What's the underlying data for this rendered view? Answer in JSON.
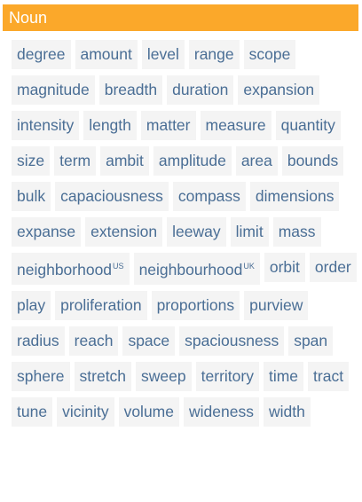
{
  "header": {
    "title": "Noun"
  },
  "words": [
    {
      "text": "degree",
      "sup": ""
    },
    {
      "text": "amount",
      "sup": ""
    },
    {
      "text": "level",
      "sup": ""
    },
    {
      "text": "range",
      "sup": ""
    },
    {
      "text": "scope",
      "sup": ""
    },
    {
      "text": "magnitude",
      "sup": ""
    },
    {
      "text": "breadth",
      "sup": ""
    },
    {
      "text": "duration",
      "sup": ""
    },
    {
      "text": "expansion",
      "sup": ""
    },
    {
      "text": "intensity",
      "sup": ""
    },
    {
      "text": "length",
      "sup": ""
    },
    {
      "text": "matter",
      "sup": ""
    },
    {
      "text": "measure",
      "sup": ""
    },
    {
      "text": "quantity",
      "sup": ""
    },
    {
      "text": "size",
      "sup": ""
    },
    {
      "text": "term",
      "sup": ""
    },
    {
      "text": "ambit",
      "sup": ""
    },
    {
      "text": "amplitude",
      "sup": ""
    },
    {
      "text": "area",
      "sup": ""
    },
    {
      "text": "bounds",
      "sup": ""
    },
    {
      "text": "bulk",
      "sup": ""
    },
    {
      "text": "capaciousness",
      "sup": ""
    },
    {
      "text": "compass",
      "sup": ""
    },
    {
      "text": "dimensions",
      "sup": ""
    },
    {
      "text": "expanse",
      "sup": ""
    },
    {
      "text": "extension",
      "sup": ""
    },
    {
      "text": "leeway",
      "sup": ""
    },
    {
      "text": "limit",
      "sup": ""
    },
    {
      "text": "mass",
      "sup": ""
    },
    {
      "text": "neighborhood",
      "sup": "US"
    },
    {
      "text": "neighbourhood",
      "sup": "UK"
    },
    {
      "text": "orbit",
      "sup": ""
    },
    {
      "text": "order",
      "sup": ""
    },
    {
      "text": "play",
      "sup": ""
    },
    {
      "text": "proliferation",
      "sup": ""
    },
    {
      "text": "proportions",
      "sup": ""
    },
    {
      "text": "purview",
      "sup": ""
    },
    {
      "text": "radius",
      "sup": ""
    },
    {
      "text": "reach",
      "sup": ""
    },
    {
      "text": "space",
      "sup": ""
    },
    {
      "text": "spaciousness",
      "sup": ""
    },
    {
      "text": "span",
      "sup": ""
    },
    {
      "text": "sphere",
      "sup": ""
    },
    {
      "text": "stretch",
      "sup": ""
    },
    {
      "text": "sweep",
      "sup": ""
    },
    {
      "text": "territory",
      "sup": ""
    },
    {
      "text": "time",
      "sup": ""
    },
    {
      "text": "tract",
      "sup": ""
    },
    {
      "text": "tune",
      "sup": ""
    },
    {
      "text": "vicinity",
      "sup": ""
    },
    {
      "text": "volume",
      "sup": ""
    },
    {
      "text": "wideness",
      "sup": ""
    },
    {
      "text": "width",
      "sup": ""
    }
  ]
}
